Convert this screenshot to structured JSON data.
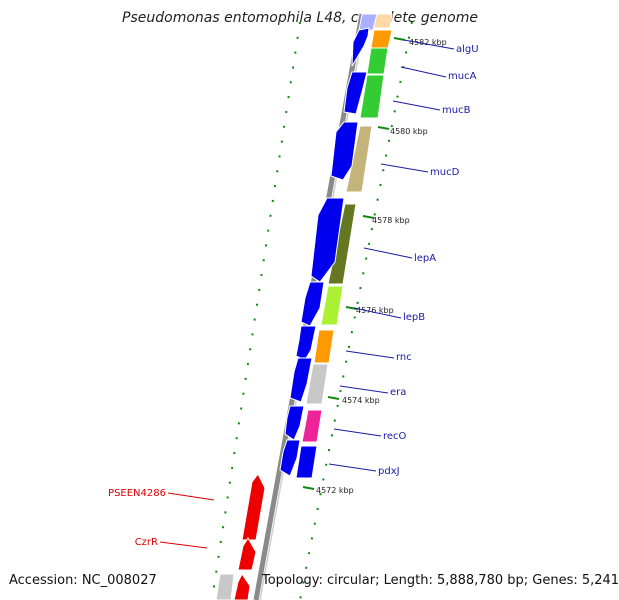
{
  "title": "Pseudomonas entomophila L48, complete genome",
  "footer": {
    "accession": "Accession: NC_008027",
    "topology": "Topology: circular; Length: 5,888,780 bp; Genes: 5,241"
  },
  "colors": {
    "strand_plus": "#0000ee",
    "label_plus": "#1a1aa8",
    "strand_minus": "#ee0000",
    "label_minus": "#dd0000",
    "backbone": "#888888",
    "tick": "#118811"
  },
  "kbp_labels": [
    "4582 kbp",
    "4580 kbp",
    "4578 kbp",
    "4576 kbp",
    "4574 kbp",
    "4572 kbp"
  ],
  "genes_plus": [
    "algU",
    "mucA",
    "mucB",
    "mucD",
    "lepA",
    "lepB",
    "rnc",
    "era",
    "recO",
    "pdxJ"
  ],
  "genes_minus": [
    "PSEEN4286",
    "CzrR"
  ]
}
